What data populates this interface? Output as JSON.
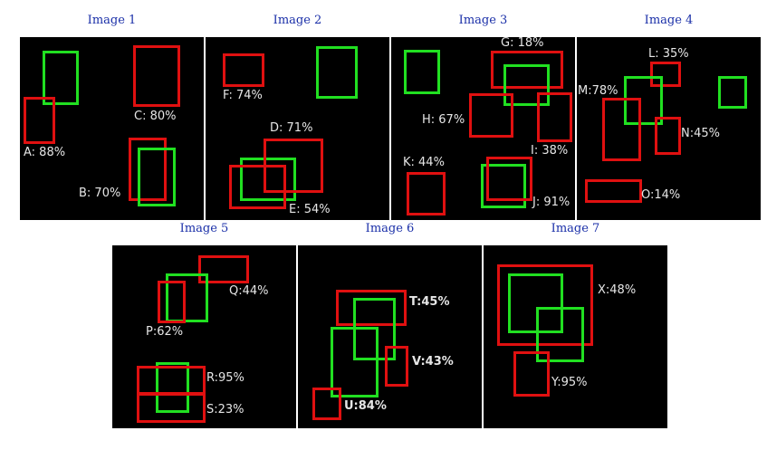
{
  "colors": {
    "green": "#21e021",
    "red": "#e01010",
    "title": "#1a2fa8"
  },
  "panels": [
    {
      "title": "Image 1",
      "boxes": [
        {
          "color": "green"
        },
        {
          "color": "red"
        },
        {
          "color": "red"
        },
        {
          "color": "red"
        },
        {
          "color": "green"
        }
      ],
      "labels": [
        "C: 80%",
        "A: 88%",
        "B: 70%"
      ]
    },
    {
      "title": "Image 2",
      "boxes": [
        {
          "color": "red"
        },
        {
          "color": "green"
        },
        {
          "color": "green"
        },
        {
          "color": "red"
        },
        {
          "color": "red"
        }
      ],
      "labels": [
        "F: 74%",
        "D: 71%",
        "E: 54%"
      ]
    },
    {
      "title": "Image 3",
      "boxes": [
        {
          "color": "green"
        },
        {
          "color": "red"
        },
        {
          "color": "green"
        },
        {
          "color": "red"
        },
        {
          "color": "red"
        },
        {
          "color": "red"
        },
        {
          "color": "green"
        },
        {
          "color": "red"
        }
      ],
      "labels": [
        "G: 18%",
        "H: 67%",
        "I: 38%",
        "K: 44%",
        "J: 91%"
      ]
    },
    {
      "title": "Image 4",
      "boxes": [
        {
          "color": "red"
        },
        {
          "color": "green"
        },
        {
          "color": "green"
        },
        {
          "color": "red"
        },
        {
          "color": "red"
        },
        {
          "color": "red"
        }
      ],
      "labels": [
        "L: 35%",
        "M:78%",
        "N:45%",
        "O:14%"
      ]
    },
    {
      "title": "Image 5",
      "boxes": [
        {
          "color": "red"
        },
        {
          "color": "green"
        },
        {
          "color": "red"
        },
        {
          "color": "green"
        },
        {
          "color": "red"
        },
        {
          "color": "red"
        }
      ],
      "labels": [
        "Q:44%",
        "P:62%",
        "R:95%",
        "S:23%"
      ]
    },
    {
      "title": "Image 6",
      "boxes": [
        {
          "color": "red"
        },
        {
          "color": "green"
        },
        {
          "color": "green"
        },
        {
          "color": "red"
        },
        {
          "color": "red"
        }
      ],
      "labels": [
        "T:45%",
        "V:43%",
        "U:84%"
      ]
    },
    {
      "title": "Image 7",
      "boxes": [
        {
          "color": "red"
        },
        {
          "color": "green"
        },
        {
          "color": "green"
        },
        {
          "color": "red"
        }
      ],
      "labels": [
        "X:48%",
        "Y:95%"
      ]
    }
  ]
}
